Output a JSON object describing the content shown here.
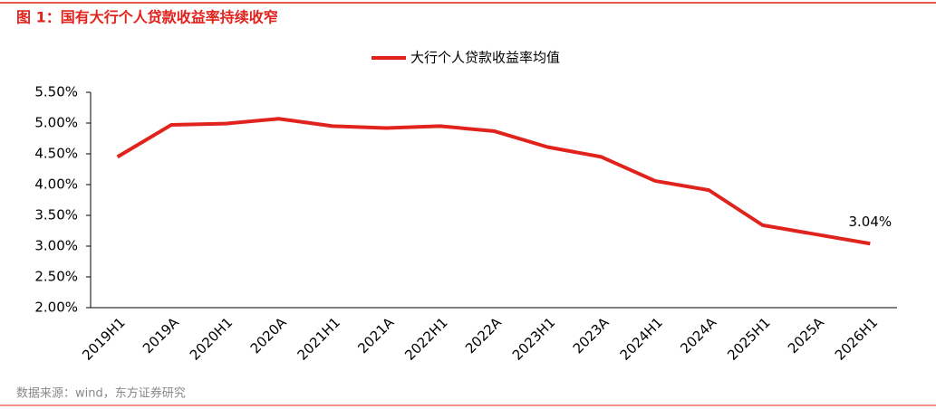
{
  "chart_data": {
    "type": "line",
    "title": "图 1：国有大行个人贷款收益率持续收窄",
    "source": "数据来源：wind，东方证券研究",
    "categories": [
      "2019H1",
      "2019A",
      "2020H1",
      "2020A",
      "2021H1",
      "2021A",
      "2022H1",
      "2022A",
      "2023H1",
      "2023A",
      "2024H1",
      "2024A",
      "2025H1",
      "2025A",
      "2026H1"
    ],
    "series": [
      {
        "name": "大行个人贷款收益率均值",
        "color": "#e0231c",
        "values": [
          4.45,
          4.97,
          4.99,
          5.07,
          4.95,
          4.92,
          4.95,
          4.87,
          4.61,
          4.45,
          4.06,
          3.91,
          3.34,
          3.19,
          3.04
        ],
        "value_labels": [
          null,
          null,
          null,
          null,
          null,
          null,
          null,
          null,
          null,
          null,
          null,
          null,
          null,
          null,
          "3.04%"
        ]
      }
    ],
    "ylim": [
      2.0,
      5.5
    ],
    "yticks": [
      {
        "value": 2.0,
        "label": "2.00%"
      },
      {
        "value": 2.5,
        "label": "2.50%"
      },
      {
        "value": 3.0,
        "label": "3.00%"
      },
      {
        "value": 3.5,
        "label": "3.50%"
      },
      {
        "value": 4.0,
        "label": "4.00%"
      },
      {
        "value": 4.5,
        "label": "4.50%"
      },
      {
        "value": 5.0,
        "label": "5.00%"
      },
      {
        "value": 5.5,
        "label": "5.50%"
      }
    ],
    "legend": "top"
  }
}
